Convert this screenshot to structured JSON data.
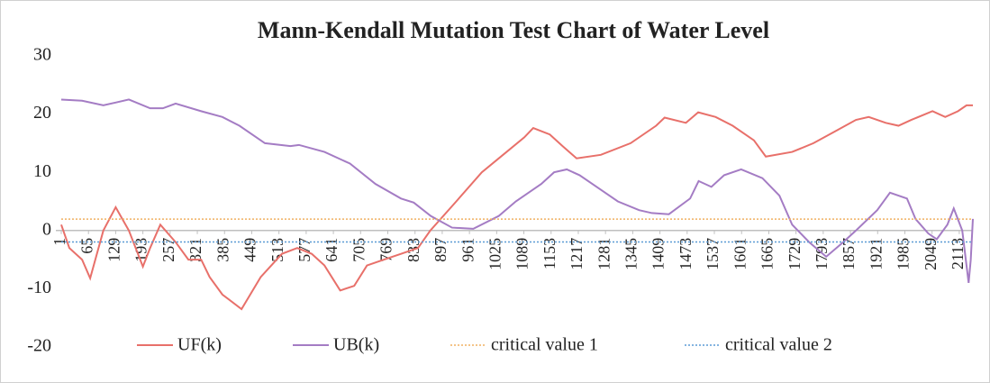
{
  "chart_data": {
    "type": "line",
    "title": "Mann-Kendall Mutation Test Chart of Water Level",
    "xlim": [
      1,
      2145
    ],
    "xticks": [
      1,
      65,
      129,
      193,
      257,
      321,
      385,
      449,
      513,
      577,
      641,
      705,
      769,
      833,
      897,
      961,
      1025,
      1089,
      1153,
      1217,
      1281,
      1345,
      1409,
      1473,
      1537,
      1601,
      1665,
      1729,
      1793,
      1857,
      1921,
      1985,
      2049,
      2113
    ],
    "ylim": [
      -20,
      30
    ],
    "yticks": [
      -20,
      -10,
      0,
      10,
      20,
      30
    ],
    "legend": "bottom",
    "series": [
      {
        "name": "UF(k)",
        "color": "#e8706a",
        "style": "solid",
        "x": [
          1,
          20,
          50,
          69,
          100,
          129,
          160,
          193,
          210,
          234,
          270,
          300,
          330,
          350,
          380,
          425,
          470,
          520,
          556,
          590,
          620,
          657,
          690,
          720,
          760,
          800,
          840,
          869,
          930,
          990,
          1040,
          1090,
          1111,
          1150,
          1180,
          1213,
          1270,
          1340,
          1400,
          1420,
          1470,
          1499,
          1540,
          1580,
          1630,
          1658,
          1720,
          1770,
          1820,
          1870,
          1900,
          1940,
          1970,
          2000,
          2050,
          2080,
          2110,
          2130,
          2145
        ],
        "values": [
          1,
          -3,
          -5,
          -8.2,
          0,
          4,
          0,
          -6.2,
          -3,
          1,
          -2,
          -5,
          -5,
          -8,
          -11,
          -13.5,
          -8,
          -4,
          -3,
          -4,
          -6,
          -10.3,
          -9.5,
          -6,
          -5,
          -4,
          -3,
          0,
          5,
          10,
          13,
          16,
          17.6,
          16.5,
          14.5,
          12.4,
          13,
          15,
          18,
          19.4,
          18.5,
          20.3,
          19.5,
          18,
          15.5,
          12.7,
          13.5,
          15,
          17,
          19,
          19.5,
          18.5,
          18,
          19,
          20.5,
          19.5,
          20.5,
          21.5,
          21.5
        ]
      },
      {
        "name": "UB(k)",
        "color": "#a47cc4",
        "style": "solid",
        "x": [
          1,
          50,
          100,
          160,
          210,
          240,
          270,
          330,
          380,
          420,
          480,
          540,
          560,
          620,
          680,
          740,
          800,
          830,
          870,
          920,
          970,
          1030,
          1070,
          1100,
          1130,
          1160,
          1190,
          1220,
          1260,
          1310,
          1360,
          1390,
          1430,
          1480,
          1500,
          1530,
          1560,
          1600,
          1650,
          1690,
          1720,
          1760,
          1800,
          1840,
          1870,
          1920,
          1950,
          1990,
          2010,
          2040,
          2060,
          2085,
          2100,
          2120,
          2135,
          2140,
          2145
        ],
        "values": [
          22.5,
          22.3,
          21.5,
          22.5,
          21,
          21,
          21.8,
          20.5,
          19.5,
          18,
          15,
          14.5,
          14.7,
          13.5,
          11.5,
          8,
          5.5,
          4.8,
          2.5,
          0.5,
          0.3,
          2.5,
          5,
          6.5,
          8,
          10,
          10.5,
          9.5,
          7.5,
          5,
          3.5,
          3,
          2.8,
          5.5,
          8.5,
          7.5,
          9.5,
          10.5,
          9,
          6,
          1,
          -2,
          -4.5,
          -2,
          0,
          3.5,
          6.5,
          5.5,
          2,
          -0.5,
          -1.5,
          1,
          3.8,
          0,
          -9,
          -5,
          2
        ]
      },
      {
        "name": "critical value 1",
        "color": "#f0b060",
        "style": "dotted",
        "x": [
          1,
          2145
        ],
        "values": [
          1.96,
          1.96
        ]
      },
      {
        "name": "critical value 2",
        "color": "#5b9bd5",
        "style": "dotted",
        "x": [
          1,
          2145
        ],
        "values": [
          -1.96,
          -1.96
        ]
      }
    ]
  }
}
